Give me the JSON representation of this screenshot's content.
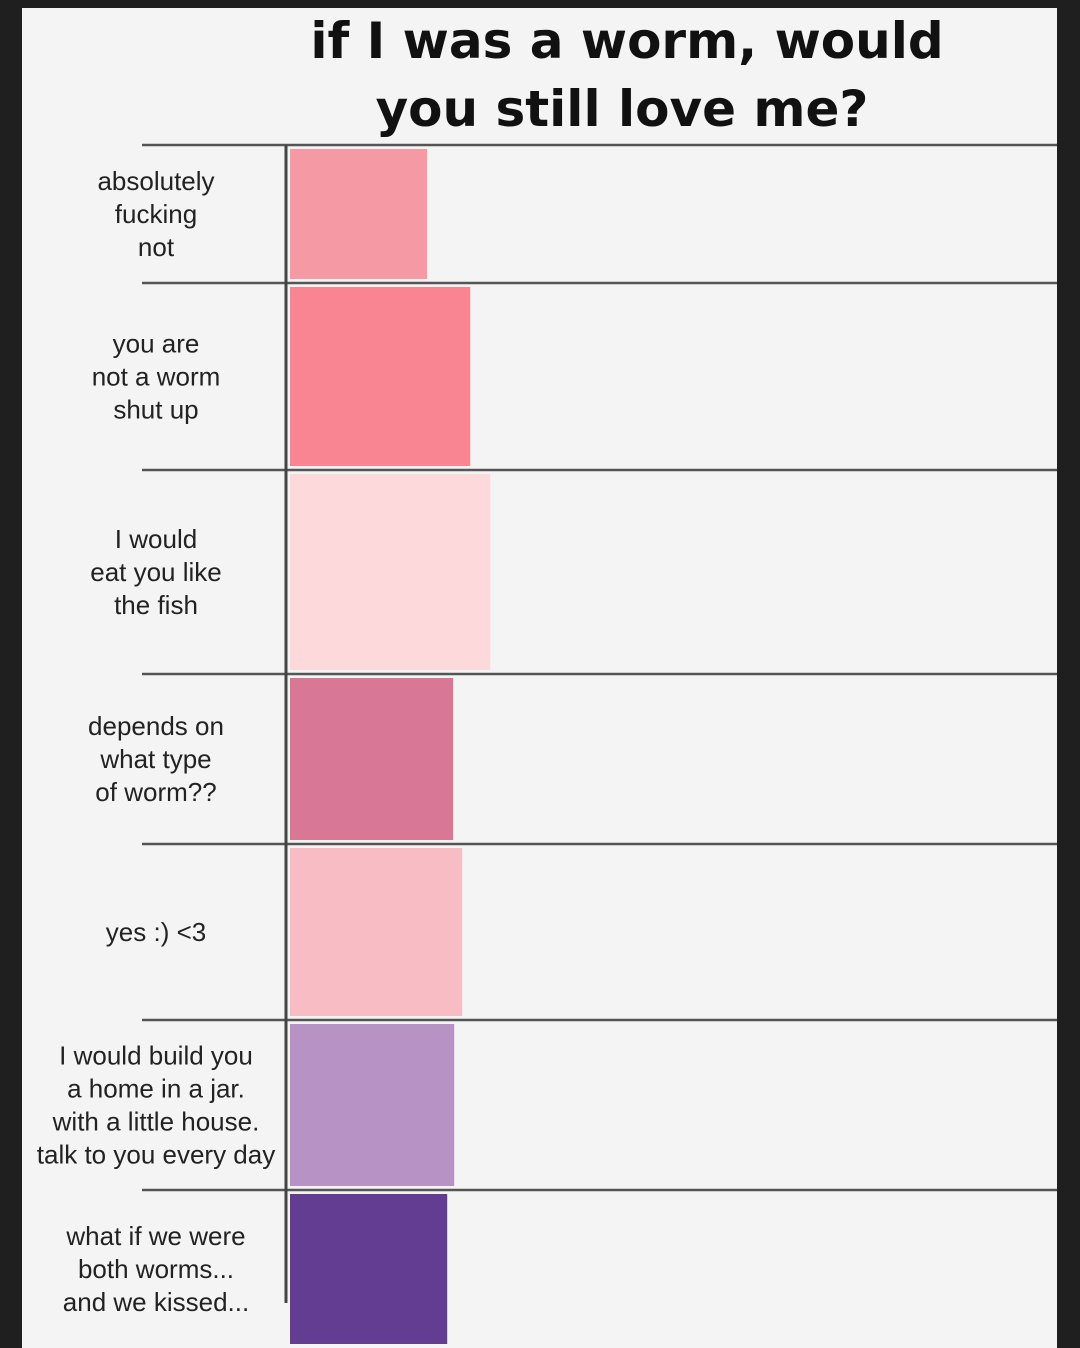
{
  "chart_data": {
    "type": "bar",
    "orientation": "horizontal",
    "title": [
      "if I was a worm, would",
      "you still love me?"
    ],
    "categories": [
      [
        "absolutely",
        "fucking",
        "not"
      ],
      [
        "you are",
        "not a worm",
        "shut up"
      ],
      [
        "I would",
        "eat you like",
        "the fish"
      ],
      [
        "depends on",
        "what type",
        "of worm??"
      ],
      [
        "yes :) <3"
      ],
      [
        "I would build you",
        "a home in a jar.",
        "with a little house.",
        "talk to you every day"
      ],
      [
        "what if we were",
        "both worms...",
        "and we kissed..."
      ]
    ],
    "values": [
      137,
      180,
      200,
      163,
      172,
      164,
      157
    ],
    "colors": [
      "#f59aa4",
      "#f98592",
      "#fdd9db",
      "#d87896",
      "#f7bcc4",
      "#b793c5",
      "#633d91"
    ],
    "xlim": [
      0,
      770
    ],
    "grid": true
  }
}
